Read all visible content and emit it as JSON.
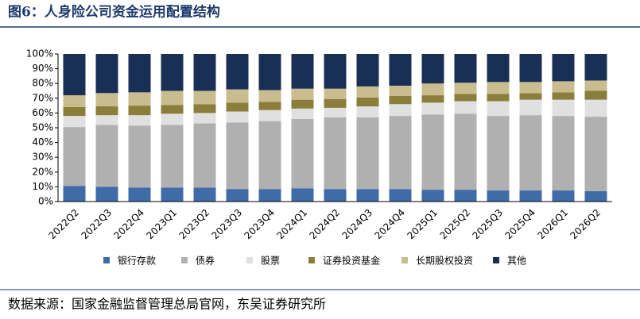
{
  "chart_data": {
    "type": "stacked_bar",
    "title": "图6：人身险公司资金运用配置结构",
    "source": "数据来源：国家金融监督管理总局官网，东吴证券研究所",
    "categories": [
      "2022Q2",
      "2022Q3",
      "2022Q4",
      "2023Q1",
      "2023Q2",
      "2023Q3",
      "2023Q4",
      "2024Q1",
      "2024Q2",
      "2024Q3",
      "2024Q4",
      "2025Q1",
      "2025Q2",
      "2025Q3",
      "2025Q4",
      "2026Q1",
      "2026Q2"
    ],
    "series": [
      {
        "name": "银行存款",
        "color": "#3f6ba8",
        "values": [
          10.5,
          10,
          9.5,
          9.5,
          9.5,
          8.5,
          8.5,
          9,
          8.5,
          8.5,
          8.5,
          8,
          8,
          7.5,
          7.5,
          7.5,
          7
        ]
      },
      {
        "name": "债券",
        "color": "#b0b0b0",
        "values": [
          40,
          42,
          42,
          42.5,
          43.5,
          45,
          46,
          47,
          48.5,
          48.5,
          49.5,
          51,
          51.5,
          50.5,
          51,
          50.5,
          50.5
        ]
      },
      {
        "name": "股票",
        "color": "#e0e0e0",
        "values": [
          7.5,
          6.5,
          7,
          7.5,
          7,
          7.5,
          7.5,
          7,
          6.5,
          7.5,
          8,
          8,
          8.5,
          10,
          10.5,
          11,
          11.5
        ]
      },
      {
        "name": "证券投资基金",
        "color": "#8b7d3a",
        "values": [
          6,
          6,
          6.5,
          6,
          6,
          6,
          5.5,
          6,
          6,
          6,
          5.5,
          5,
          5,
          5,
          4.5,
          5,
          6
        ]
      },
      {
        "name": "长期股权投资",
        "color": "#c9bd8f",
        "values": [
          8,
          9,
          9,
          9.5,
          9,
          9,
          8,
          7.5,
          7,
          7.5,
          7,
          8,
          7.5,
          8,
          7.5,
          7.5,
          7
        ]
      },
      {
        "name": "其他",
        "color": "#1a2f55",
        "values": [
          28,
          26.5,
          26,
          25,
          25,
          24,
          24.5,
          23.5,
          23.5,
          22,
          21.5,
          20,
          19.5,
          19,
          19,
          18.5,
          18
        ]
      }
    ],
    "ylim": [
      0,
      100
    ],
    "yticks": [
      {
        "value": 0,
        "label": "0%"
      },
      {
        "value": 10,
        "label": "10%"
      },
      {
        "value": 20,
        "label": "20%"
      },
      {
        "value": 30,
        "label": "30%"
      },
      {
        "value": 40,
        "label": "40%"
      },
      {
        "value": 50,
        "label": "50%"
      },
      {
        "value": 60,
        "label": "60%"
      },
      {
        "value": 70,
        "label": "70%"
      },
      {
        "value": 80,
        "label": "80%"
      },
      {
        "value": 90,
        "label": "90%"
      },
      {
        "value": 100,
        "label": "100%"
      }
    ],
    "legend": "bottom"
  }
}
